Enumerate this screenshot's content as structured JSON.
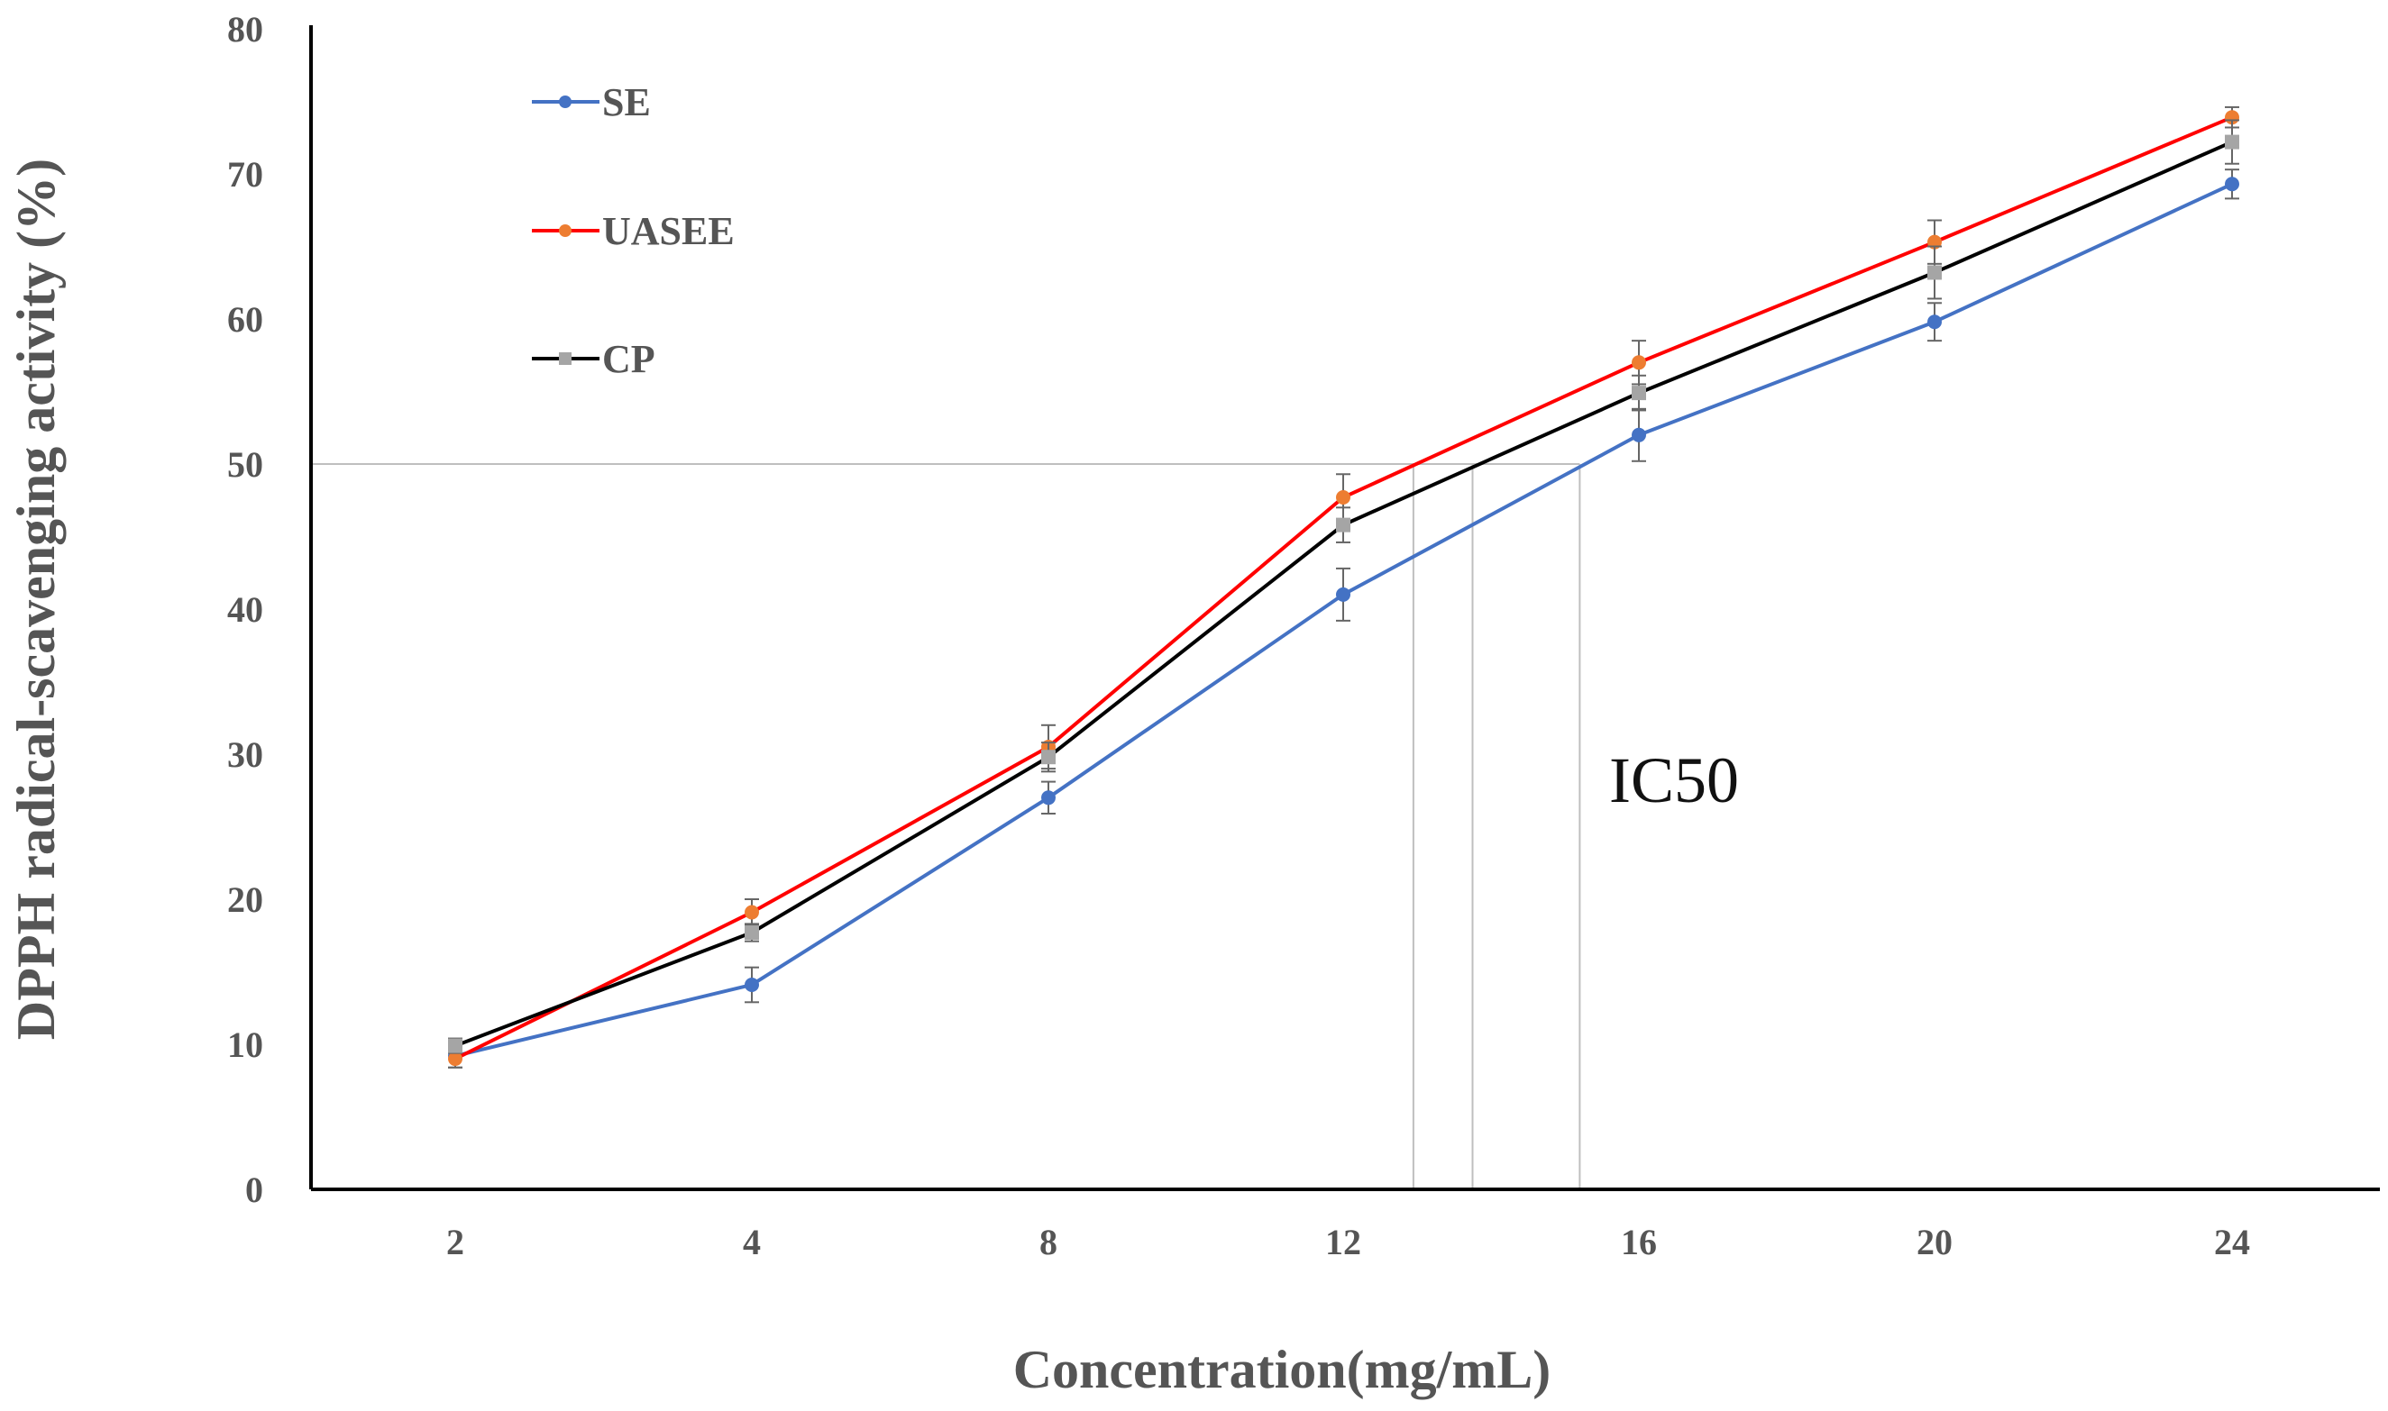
{
  "chart_data": {
    "type": "line",
    "title": "",
    "xlabel": "Concentration(mg/mL)",
    "ylabel": "DPPH radical-scavenging activity (%)",
    "categories": [
      "2",
      "4",
      "8",
      "12",
      "16",
      "20",
      "24"
    ],
    "ylim": [
      0,
      80
    ],
    "yticks": [
      0,
      10,
      20,
      30,
      40,
      50,
      60,
      70,
      80
    ],
    "series": [
      {
        "name": "SE",
        "line_color": "#4472C4",
        "marker_color": "#4472C4",
        "values": [
          9.2,
          14.1,
          27.0,
          41.0,
          52.0,
          59.8,
          69.3
        ],
        "errors": [
          0.8,
          1.2,
          1.1,
          1.8,
          1.8,
          1.3,
          1.0
        ]
      },
      {
        "name": "UASEE",
        "line_color": "#FF0000",
        "marker_color": "#ED7D31",
        "values": [
          9.0,
          19.1,
          30.5,
          47.7,
          57.0,
          65.3,
          73.9
        ],
        "errors": [
          0.6,
          0.9,
          1.5,
          1.6,
          1.5,
          1.5,
          0.7
        ]
      },
      {
        "name": "CP",
        "line_color": "#000000",
        "marker_color": "#A5A5A5",
        "values": [
          9.9,
          17.7,
          29.8,
          45.8,
          54.9,
          63.2,
          72.2
        ],
        "errors": [
          0.5,
          0.6,
          1.0,
          1.2,
          1.2,
          1.8,
          1.5
        ]
      }
    ],
    "reference_line": {
      "y": 50,
      "label": "IC50"
    },
    "ic50_positions": [
      12.95,
      13.75,
      15.2
    ],
    "legend_position": "top-left",
    "grid": false
  }
}
